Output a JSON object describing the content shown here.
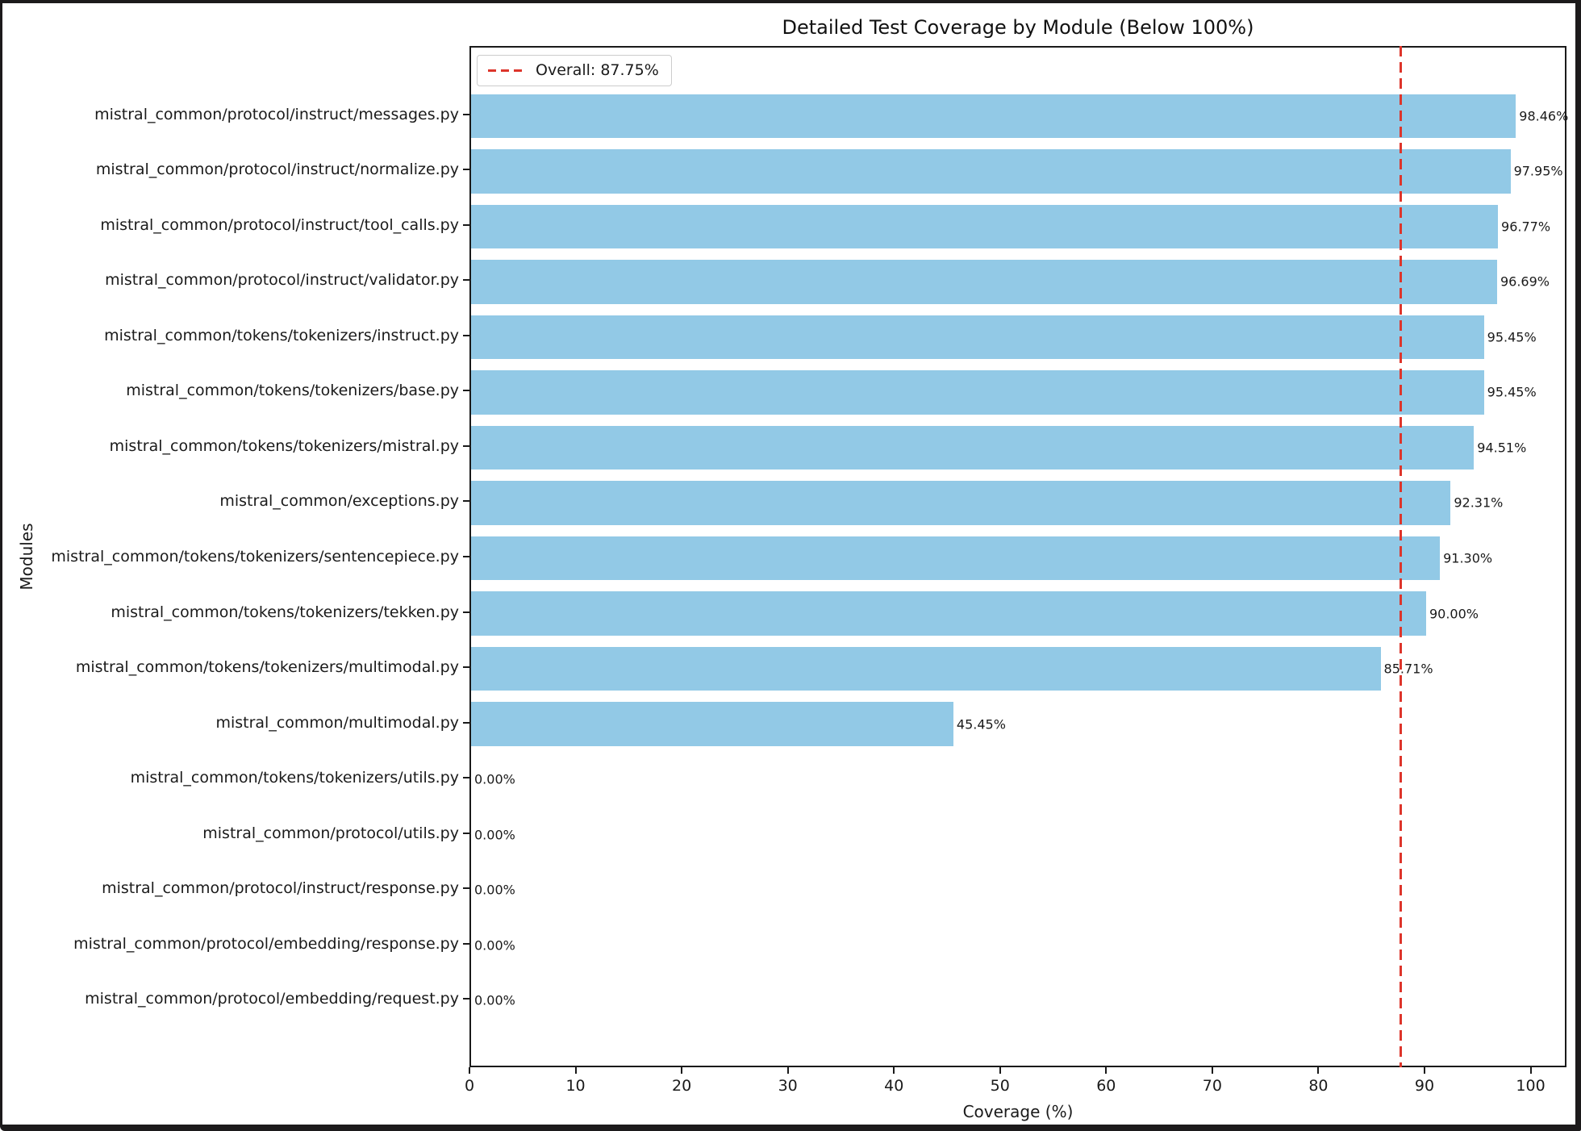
{
  "chart_data": {
    "type": "bar",
    "orientation": "horizontal",
    "title": "Detailed Test Coverage by Module (Below 100%)",
    "xlabel": "Coverage (%)",
    "ylabel": "Modules",
    "categories": [
      "mistral_common/protocol/instruct/messages.py",
      "mistral_common/protocol/instruct/normalize.py",
      "mistral_common/protocol/instruct/tool_calls.py",
      "mistral_common/protocol/instruct/validator.py",
      "mistral_common/tokens/tokenizers/instruct.py",
      "mistral_common/tokens/tokenizers/base.py",
      "mistral_common/tokens/tokenizers/mistral.py",
      "mistral_common/exceptions.py",
      "mistral_common/tokens/tokenizers/sentencepiece.py",
      "mistral_common/tokens/tokenizers/tekken.py",
      "mistral_common/tokens/tokenizers/multimodal.py",
      "mistral_common/multimodal.py",
      "mistral_common/tokens/tokenizers/utils.py",
      "mistral_common/protocol/utils.py",
      "mistral_common/protocol/instruct/response.py",
      "mistral_common/protocol/embedding/response.py",
      "mistral_common/protocol/embedding/request.py"
    ],
    "values": [
      98.46,
      97.95,
      96.77,
      96.69,
      95.45,
      95.45,
      94.51,
      92.31,
      91.3,
      90.0,
      85.71,
      45.45,
      0.0,
      0.0,
      0.0,
      0.0,
      0.0
    ],
    "value_labels": [
      "98.46%",
      "97.95%",
      "96.77%",
      "96.69%",
      "95.45%",
      "95.45%",
      "94.51%",
      "92.31%",
      "91.30%",
      "90.00%",
      "85.71%",
      "45.45%",
      "0.00%",
      "0.00%",
      "0.00%",
      "0.00%",
      "0.00%"
    ],
    "xlim": [
      0,
      103.38
    ],
    "xticks": [
      0,
      10,
      20,
      30,
      40,
      50,
      60,
      70,
      80,
      90,
      100
    ],
    "grid": false,
    "legend": {
      "label": "Overall: 87.75%",
      "position": "upper left"
    },
    "overall_line": {
      "value": 87.75,
      "style": "dashed",
      "color": "#dd352b"
    },
    "bar_color": "#92c9e6"
  }
}
